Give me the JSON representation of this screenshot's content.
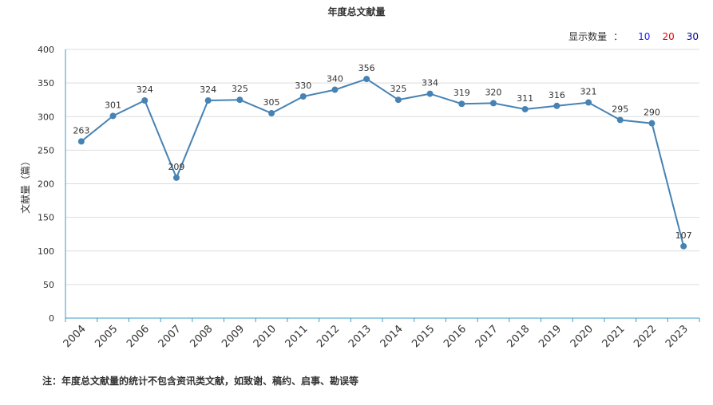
{
  "chart_title": "年度总文献量",
  "display_count": {
    "label": "显示数量",
    "separator": "：",
    "options": [
      {
        "label": "10",
        "color": "#1a1aff"
      },
      {
        "label": "20",
        "color": "#e60000"
      },
      {
        "label": "30",
        "color": "#000099"
      }
    ]
  },
  "footnote": "注：年度总文献量的统计不包含资讯类文献，如致谢、稿约、启事、勘误等",
  "chart_data": {
    "type": "line",
    "title": "年度总文献量",
    "xlabel": "",
    "ylabel": "文献量（篇）",
    "ylim": [
      0,
      400
    ],
    "yticks": [
      0,
      50,
      100,
      150,
      200,
      250,
      300,
      350,
      400
    ],
    "grid": true,
    "line_color": "#4682b4",
    "categories": [
      "2004",
      "2005",
      "2006",
      "2007",
      "2008",
      "2009",
      "2010",
      "2011",
      "2012",
      "2013",
      "2014",
      "2015",
      "2016",
      "2017",
      "2018",
      "2019",
      "2020",
      "2021",
      "2022",
      "2023"
    ],
    "series": [
      {
        "values": [
          263,
          301,
          324,
          209,
          324,
          325,
          305,
          330,
          340,
          356,
          325,
          334,
          319,
          320,
          311,
          316,
          321,
          295,
          290,
          107
        ]
      }
    ]
  }
}
